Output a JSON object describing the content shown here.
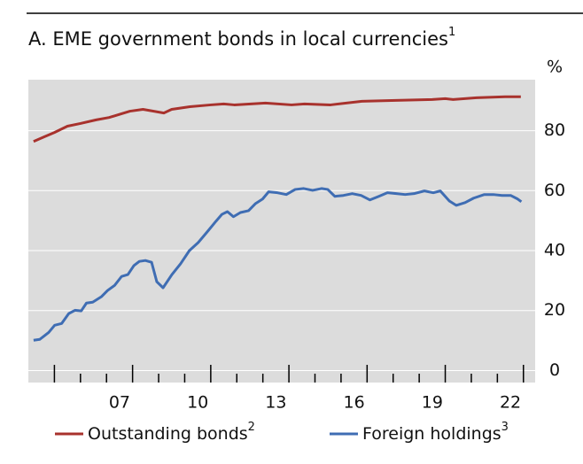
{
  "chart_data": {
    "type": "line",
    "title": "A. EME government bonds in local currencies",
    "title_note": "1",
    "y_unit": "%",
    "background": "#dcdcdc",
    "grid": true,
    "grid_color": "#ffffff",
    "xlim": [
      2004,
      2023.45
    ],
    "xticks": [
      {
        "value": 2007.5,
        "label": "07"
      },
      {
        "value": 2010.5,
        "label": "10"
      },
      {
        "value": 2013.5,
        "label": "13"
      },
      {
        "value": 2016.5,
        "label": "16"
      },
      {
        "value": 2019.5,
        "label": "19"
      },
      {
        "value": 2022.5,
        "label": "22"
      }
    ],
    "xminor_ticks": [
      2005,
      2006,
      2007,
      2008,
      2009,
      2010,
      2011,
      2012,
      2013,
      2014,
      2015,
      2016,
      2017,
      2018,
      2019,
      2020,
      2021,
      2022,
      2023
    ],
    "ylim": [
      -4,
      97
    ],
    "yticks": [
      0,
      20,
      40,
      60,
      80
    ],
    "series": [
      {
        "name": "Outstanding bonds",
        "note": "2",
        "color": "#a8322d",
        "x": [
          2004.2,
          2004.6,
          2005.0,
          2005.5,
          2006.0,
          2006.6,
          2007.1,
          2007.9,
          2008.4,
          2009.2,
          2009.5,
          2010.2,
          2011.0,
          2011.5,
          2011.9,
          2013.1,
          2014.1,
          2014.6,
          2015.6,
          2016.8,
          2018.1,
          2019.5,
          2020.0,
          2020.3,
          2021.2,
          2022.3,
          2022.9
        ],
        "values": [
          76.4,
          77.9,
          79.4,
          81.5,
          82.4,
          83.6,
          84.4,
          86.5,
          87.1,
          85.9,
          87.1,
          88.0,
          88.6,
          88.9,
          88.6,
          89.2,
          88.6,
          88.9,
          88.6,
          89.8,
          90.1,
          90.4,
          90.7,
          90.4,
          91.0,
          91.3,
          91.3
        ]
      },
      {
        "name": "Foreign holdings",
        "note": "3",
        "color": "#3f6db3",
        "x": [
          2004.2,
          2004.44,
          2004.78,
          2005.01,
          2005.28,
          2005.55,
          2005.79,
          2006.03,
          2006.23,
          2006.47,
          2006.8,
          2007.04,
          2007.31,
          2007.58,
          2007.82,
          2008.05,
          2008.26,
          2008.49,
          2008.73,
          2008.93,
          2009.17,
          2009.51,
          2009.84,
          2010.18,
          2010.52,
          2010.86,
          2011.2,
          2011.43,
          2011.64,
          2011.87,
          2012.14,
          2012.45,
          2012.72,
          2012.99,
          2013.22,
          2013.56,
          2013.9,
          2014.24,
          2014.57,
          2014.91,
          2015.25,
          2015.49,
          2015.76,
          2016.09,
          2016.43,
          2016.77,
          2017.11,
          2017.45,
          2017.78,
          2018.12,
          2018.46,
          2018.8,
          2019.2,
          2019.54,
          2019.81,
          2020.15,
          2020.42,
          2020.76,
          2021.09,
          2021.5,
          2021.84,
          2022.18,
          2022.51,
          2022.78,
          2022.92
        ],
        "values": [
          10.1,
          10.4,
          12.7,
          15.1,
          15.7,
          19.0,
          20.1,
          19.9,
          22.5,
          22.8,
          24.6,
          26.7,
          28.4,
          31.4,
          32.0,
          35.0,
          36.4,
          36.7,
          36.1,
          29.6,
          27.6,
          32.0,
          35.6,
          40.0,
          42.7,
          46.2,
          49.8,
          52.1,
          53.0,
          51.3,
          52.7,
          53.3,
          55.7,
          57.2,
          59.6,
          59.3,
          58.7,
          60.4,
          60.7,
          60.1,
          60.7,
          60.4,
          58.1,
          58.4,
          59.0,
          58.4,
          56.9,
          58.1,
          59.3,
          59.0,
          58.7,
          59.0,
          59.9,
          59.3,
          59.9,
          56.6,
          55.1,
          56.0,
          57.5,
          58.7,
          58.7,
          58.4,
          58.4,
          57.2,
          56.3
        ]
      }
    ]
  }
}
